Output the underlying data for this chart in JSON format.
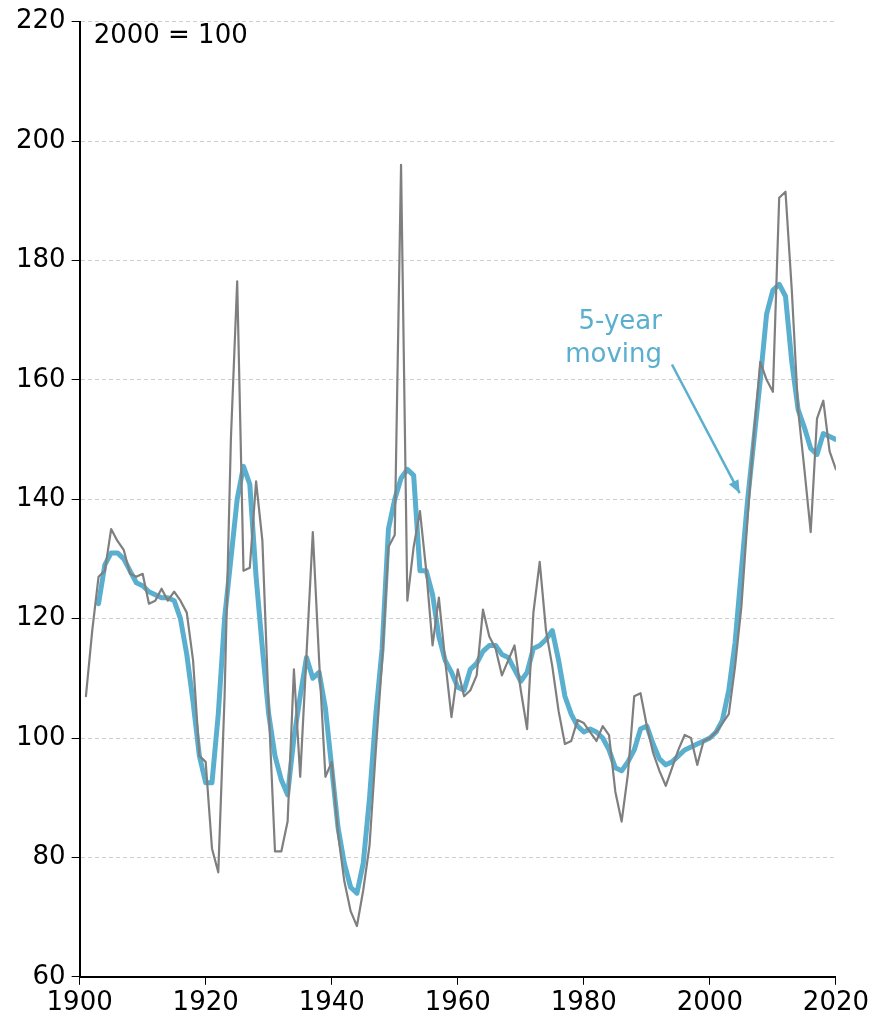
{
  "chart_data": {
    "type": "line",
    "annotations": [
      "2000 = 100"
    ],
    "xlim": [
      1900,
      2020
    ],
    "xticks": [
      1900,
      1920,
      1940,
      1960,
      1980,
      2000,
      2020
    ],
    "ylim": [
      60,
      220
    ],
    "yticks": [
      60,
      80,
      100,
      120,
      140,
      160,
      180,
      200,
      220
    ],
    "grid": "y",
    "legend": false,
    "marker": "none",
    "x": [
      1901,
      1902,
      1903,
      1904,
      1905,
      1906,
      1907,
      1908,
      1909,
      1910,
      1911,
      1912,
      1913,
      1914,
      1915,
      1916,
      1917,
      1918,
      1919,
      1920,
      1921,
      1922,
      1923,
      1924,
      1925,
      1926,
      1927,
      1928,
      1929,
      1930,
      1931,
      1932,
      1933,
      1934,
      1935,
      1936,
      1937,
      1938,
      1939,
      1940,
      1941,
      1942,
      1943,
      1944,
      1945,
      1946,
      1947,
      1948,
      1949,
      1950,
      1951,
      1952,
      1953,
      1954,
      1955,
      1956,
      1957,
      1958,
      1959,
      1960,
      1961,
      1962,
      1963,
      1964,
      1965,
      1966,
      1967,
      1968,
      1969,
      1970,
      1971,
      1972,
      1973,
      1974,
      1975,
      1976,
      1977,
      1978,
      1979,
      1980,
      1981,
      1982,
      1983,
      1984,
      1985,
      1986,
      1987,
      1988,
      1989,
      1990,
      1991,
      1992,
      1993,
      1994,
      1995,
      1996,
      1997,
      1998,
      1999,
      2000,
      2001,
      2002,
      2003,
      2004,
      2005,
      2006,
      2007,
      2008,
      2009,
      2010,
      2011,
      2012,
      2013,
      2014,
      2015,
      2016,
      2017,
      2018,
      2019,
      2020
    ],
    "series": [
      {
        "color": "#7f7f7f",
        "values": [
          107,
          118,
          127,
          128,
          135,
          133,
          131.5,
          127.5,
          127,
          127.5,
          122.5,
          123,
          125,
          123,
          124.5,
          123,
          121,
          113,
          97,
          96,
          81.5,
          77.5,
          107,
          150,
          176.5,
          128,
          128.5,
          143,
          133,
          105,
          81,
          81,
          86,
          111.5,
          93.5,
          114,
          134.5,
          113,
          93.5,
          96,
          84,
          76,
          71,
          68.5,
          74.5,
          82,
          98,
          113,
          132,
          134,
          196,
          123,
          132,
          138,
          128,
          115.5,
          123.5,
          113,
          103.5,
          111.5,
          107,
          108,
          110.5,
          121.5,
          117,
          115,
          110.5,
          113,
          115.5,
          108,
          101.5,
          121,
          129.5,
          118,
          112,
          104.5,
          99,
          99.5,
          103,
          102.5,
          101,
          99.5,
          102,
          100.5,
          91,
          86,
          94,
          107,
          107.5,
          102,
          97.5,
          94.5,
          92,
          95,
          98,
          100.5,
          100,
          95.5,
          99.5,
          100,
          101,
          102.5,
          104,
          112,
          122,
          137,
          151,
          163,
          160,
          158,
          190.5,
          191.5,
          175,
          155,
          145,
          134.5,
          153.5,
          156.5,
          148,
          145
        ]
      },
      {
        "name": "5-year moving",
        "color": "#5aafcf",
        "x": [
          1903,
          1904,
          1905,
          1906,
          1907,
          1908,
          1909,
          1910,
          1911,
          1912,
          1913,
          1914,
          1915,
          1916,
          1917,
          1918,
          1919,
          1920,
          1921,
          1922,
          1923,
          1924,
          1925,
          1926,
          1927,
          1928,
          1929,
          1930,
          1931,
          1932,
          1933,
          1934,
          1935,
          1936,
          1937,
          1938,
          1939,
          1940,
          1941,
          1942,
          1943,
          1944,
          1945,
          1946,
          1947,
          1948,
          1949,
          1950,
          1951,
          1952,
          1953,
          1954,
          1955,
          1956,
          1957,
          1958,
          1959,
          1960,
          1961,
          1962,
          1963,
          1964,
          1965,
          1966,
          1967,
          1968,
          1969,
          1970,
          1971,
          1972,
          1973,
          1974,
          1975,
          1976,
          1977,
          1978,
          1979,
          1980,
          1981,
          1982,
          1983,
          1984,
          1985,
          1986,
          1987,
          1988,
          1989,
          1990,
          1991,
          1992,
          1993,
          1994,
          1995,
          1996,
          1997,
          1998,
          1999,
          2000,
          2001,
          2002,
          2003,
          2004,
          2005,
          2006,
          2007,
          2008,
          2009,
          2010,
          2011,
          2012,
          2013,
          2014,
          2015,
          2016,
          2017,
          2018,
          2019,
          2020
        ],
        "values": [
          122.5,
          129,
          131,
          131,
          130,
          128,
          126,
          125.5,
          124.5,
          124,
          123.5,
          123.5,
          123,
          120,
          114,
          106,
          97,
          92.5,
          92.5,
          104,
          120,
          130,
          140,
          145.5,
          142.5,
          127,
          115,
          104,
          97,
          93,
          90.5,
          100,
          107,
          113.5,
          110,
          111,
          105,
          95,
          85,
          79,
          75,
          74,
          79,
          90,
          104,
          115,
          135,
          140,
          143.5,
          145,
          144,
          128,
          128,
          124,
          117,
          113,
          111,
          108.5,
          108,
          111.5,
          112.5,
          114.5,
          115.5,
          115.5,
          114,
          113.5,
          111.5,
          109.5,
          111,
          115,
          115.5,
          116.5,
          118,
          113,
          107,
          104,
          102,
          101,
          101.5,
          101,
          100,
          98,
          95,
          94.5,
          96,
          98,
          101.5,
          102,
          99,
          96.5,
          95.5,
          96,
          97,
          98,
          98.5,
          99,
          99.5,
          100,
          101,
          103,
          108,
          116,
          128,
          140,
          150,
          160,
          171,
          175,
          176,
          174,
          163,
          155,
          152,
          148.5,
          147.5,
          151,
          150.5,
          150
        ]
      }
    ]
  }
}
